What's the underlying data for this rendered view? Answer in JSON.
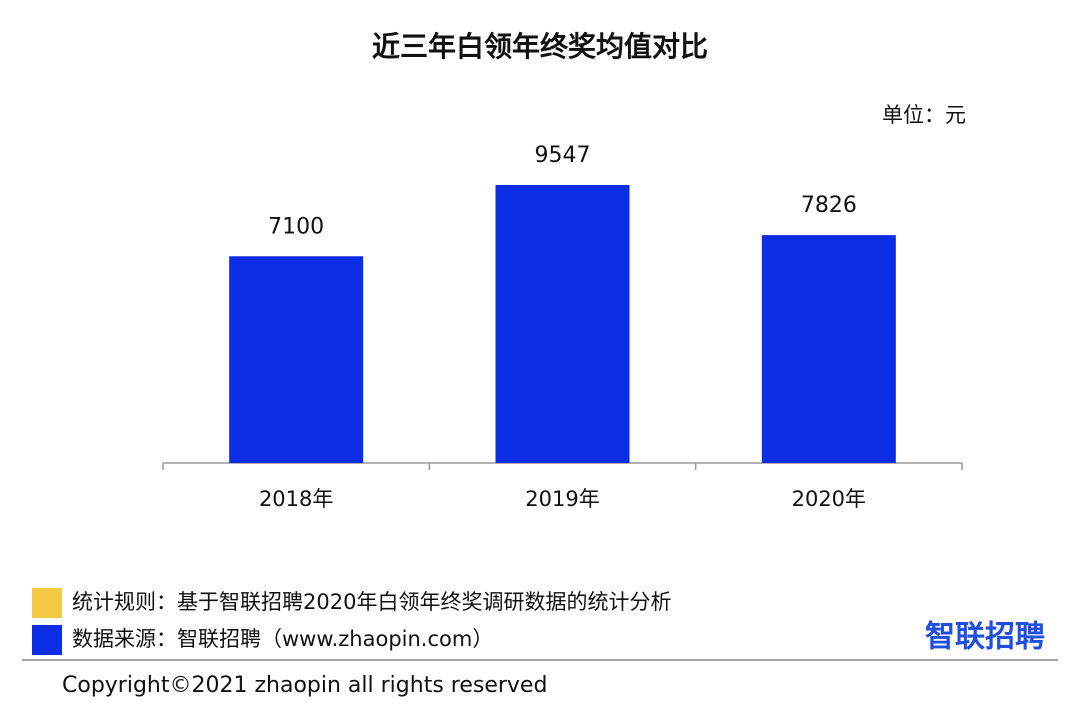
{
  "chart_data": {
    "type": "bar",
    "title": "近三年白领年终奖均值对比",
    "unit": "单位：元",
    "categories": [
      "2018年",
      "2019年",
      "2020年"
    ],
    "values": [
      7100,
      9547,
      7826
    ],
    "color": "#0b2de6"
  },
  "footer": {
    "notes": [
      {
        "text": "统计规则：基于智联招聘2020年白领年终奖调研数据的统计分析",
        "color": "#f6c945"
      },
      {
        "text": "数据来源：智联招聘（www.zhaopin.com）",
        "color": "#0b2de6"
      }
    ],
    "logo": "智联招聘",
    "copyright": "Copyright©2021 zhaopin all rights reserved"
  }
}
